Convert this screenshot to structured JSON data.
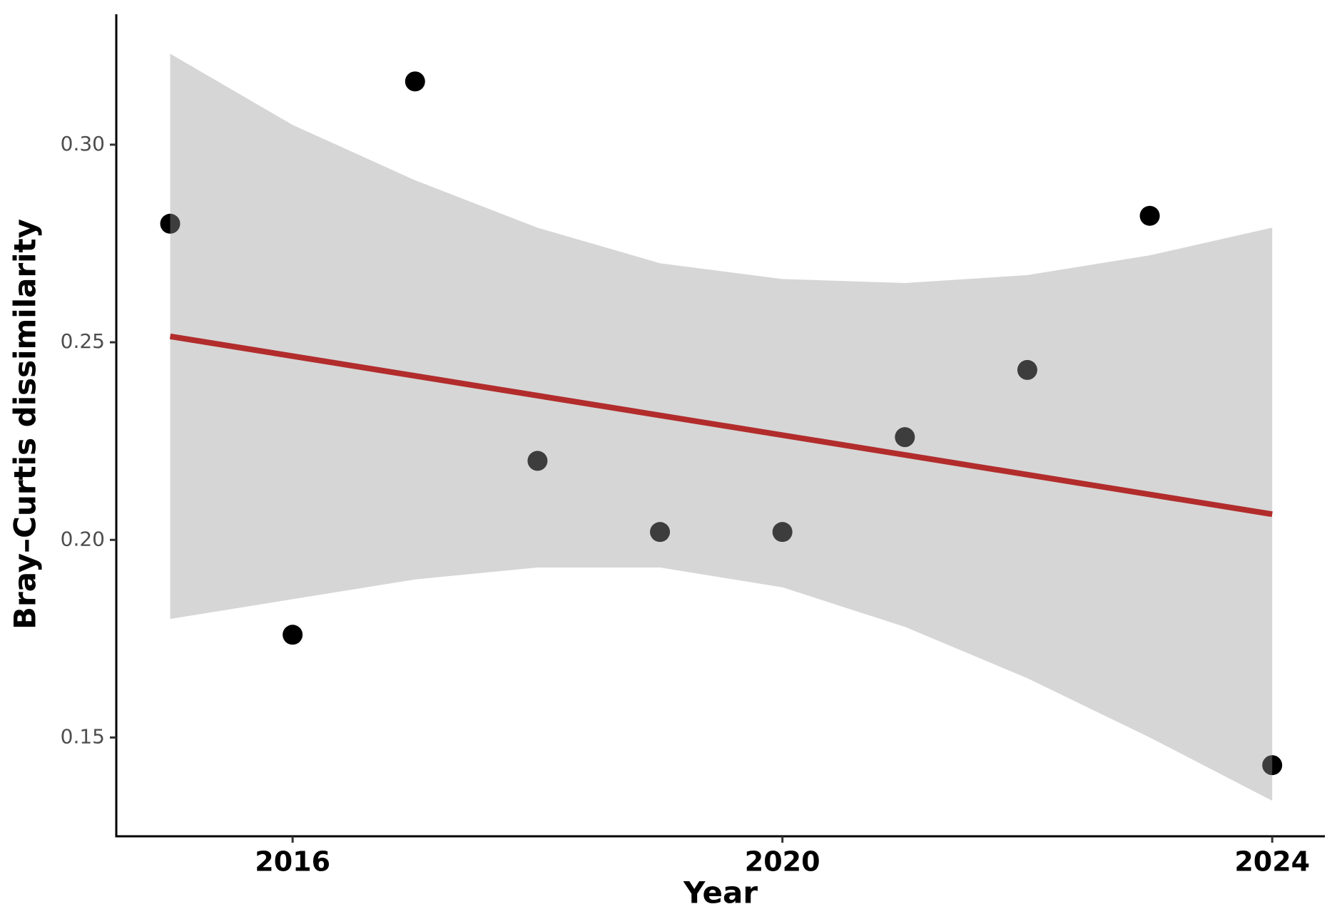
{
  "chart_data": {
    "type": "scatter",
    "x_label": "Year",
    "y_label": "Bray–Curtis dissimilarity",
    "x": [
      2015,
      2016,
      2017,
      2018,
      2019,
      2020,
      2021,
      2022,
      2023,
      2024
    ],
    "values": [
      0.28,
      0.176,
      0.316,
      0.22,
      0.202,
      0.202,
      0.226,
      0.243,
      0.282,
      0.143
    ],
    "color": "#000000",
    "fit": {
      "x": [
        2015,
        2024
      ],
      "values": [
        0.2515,
        0.2065
      ],
      "color": "#b22c2c"
    },
    "band": {
      "x": [
        2015,
        2016,
        2017,
        2018,
        2019,
        2020,
        2021,
        2022,
        2023,
        2024
      ],
      "upper": [
        0.323,
        0.305,
        0.291,
        0.279,
        0.27,
        0.266,
        0.265,
        0.267,
        0.272,
        0.279
      ],
      "lower": [
        0.18,
        0.185,
        0.19,
        0.193,
        0.193,
        0.188,
        0.178,
        0.165,
        0.15,
        0.134
      ],
      "color": "#999999",
      "alpha": 0.4
    },
    "xlim": [
      2014.56,
      2024.43
    ],
    "xticks": [
      2016,
      2020,
      2024
    ],
    "ylim": [
      0.125,
      0.333
    ],
    "yticks": [
      0.15,
      {
        "value": 0.2,
        "label": "0.20"
      },
      0.25,
      {
        "value": 0.3,
        "label": "0.30"
      }
    ]
  }
}
